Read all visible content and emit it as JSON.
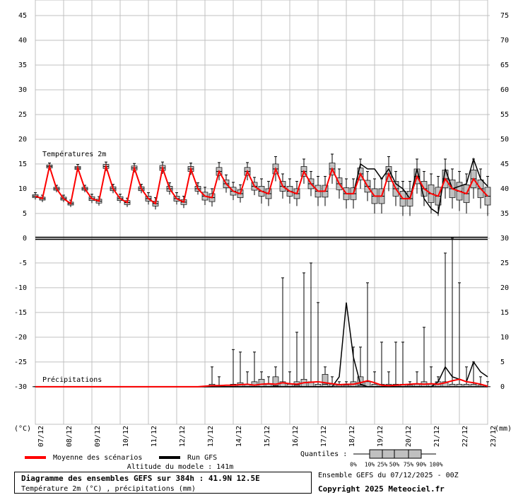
{
  "chart_data": {
    "type": "boxplot",
    "categories": [
      "07/12",
      "08/12",
      "09/12",
      "10/12",
      "11/12",
      "12/12",
      "13/12",
      "14/12",
      "15/12",
      "16/12",
      "17/12",
      "18/12",
      "19/12",
      "20/12",
      "21/12",
      "22/12",
      "23/12"
    ],
    "ylim": [
      -37.6,
      45
    ],
    "yticks": [
      -30,
      -25,
      -20,
      -15,
      -10,
      -5,
      0,
      5,
      10,
      15,
      20,
      25,
      30,
      35,
      40,
      45
    ],
    "y2lim": [
      -7.6,
      75
    ],
    "y2ticks": [
      0,
      5,
      10,
      15,
      20,
      25,
      30,
      35,
      40,
      45,
      50,
      55,
      60,
      65,
      70,
      75
    ],
    "ylabel": "(°C)",
    "y2label": "(mm)",
    "grid": true,
    "box_color": "#c0c0c0",
    "legend": [
      {
        "name": "Moyenne des scénarios",
        "color": "#ff0000"
      },
      {
        "name": "Run GFS",
        "color": "#000000"
      }
    ],
    "temperature": {
      "label": "Températures 2m",
      "mean": [
        8.5,
        8,
        14.5,
        10,
        8,
        7,
        14.2,
        10,
        8,
        7.5,
        14.5,
        10,
        8,
        7.2,
        14.2,
        10,
        8,
        7,
        14.2,
        10,
        8,
        7.3,
        14,
        10,
        8.5,
        8.2,
        13.5,
        11,
        9.5,
        9,
        13.5,
        10.5,
        9.5,
        9,
        14,
        10.5,
        9.5,
        9,
        13.5,
        11,
        9.5,
        9.5,
        14,
        11,
        9,
        9,
        13,
        10.5,
        8.5,
        8.5,
        13,
        10,
        8,
        8,
        12.5,
        10,
        9,
        8.5,
        12,
        10,
        9.5,
        9,
        12,
        10,
        8.5
      ],
      "gfs": [
        8.5,
        8,
        14.5,
        10,
        8,
        7,
        14.2,
        10,
        8,
        7.5,
        14.5,
        10,
        8,
        7.2,
        14.2,
        10,
        8,
        7,
        14.2,
        10,
        8,
        7.3,
        14,
        10,
        8.5,
        8.2,
        13.5,
        11,
        9.5,
        9,
        13.5,
        10.5,
        9.5,
        9,
        14,
        10.5,
        9.5,
        9,
        13.5,
        11,
        9.5,
        9.5,
        14,
        11,
        9,
        9,
        15,
        14,
        14,
        12,
        14,
        11,
        10,
        8,
        14,
        8,
        6,
        5,
        14,
        10,
        10.5,
        11,
        16,
        12,
        10.5
      ],
      "boxes": [
        [
          7.8,
          8.2,
          8.5,
          8.8,
          9.2
        ],
        [
          7.3,
          7.7,
          8,
          8.3,
          8.7
        ],
        [
          13.8,
          14.2,
          14.5,
          14.8,
          15.2
        ],
        [
          9.3,
          9.7,
          10,
          10.3,
          10.7
        ],
        [
          7.3,
          7.7,
          8,
          8.3,
          8.7
        ],
        [
          6.3,
          6.7,
          7,
          7.3,
          7.7
        ],
        [
          13.5,
          13.9,
          14.2,
          14.5,
          14.9
        ],
        [
          9.3,
          9.7,
          10,
          10.3,
          10.7
        ],
        [
          7.1,
          7.6,
          8,
          8.4,
          8.9
        ],
        [
          6.6,
          7.1,
          7.5,
          7.9,
          8.4
        ],
        [
          13.6,
          14.1,
          14.5,
          14.9,
          15.4
        ],
        [
          9.1,
          9.6,
          10,
          10.4,
          10.9
        ],
        [
          7.1,
          7.6,
          8,
          8.4,
          8.9
        ],
        [
          6.3,
          6.8,
          7.2,
          7.6,
          8.1
        ],
        [
          13.3,
          13.8,
          14.2,
          14.6,
          15.1
        ],
        [
          9.1,
          9.6,
          10,
          10.4,
          10.9
        ],
        [
          6.8,
          7.5,
          8,
          8.5,
          9.2
        ],
        [
          5.8,
          6.5,
          7,
          7.5,
          8.2
        ],
        [
          13,
          13.7,
          14.2,
          14.7,
          15.4
        ],
        [
          8.8,
          9.5,
          10,
          10.5,
          11.2
        ],
        [
          6.8,
          7.5,
          8,
          8.5,
          9.2
        ],
        [
          6.1,
          6.8,
          7.3,
          7.8,
          8.5
        ],
        [
          12.8,
          13.5,
          14,
          14.5,
          15.2
        ],
        [
          8.8,
          9.5,
          10,
          10.5,
          11.2
        ],
        [
          6.7,
          7.7,
          8.5,
          9.3,
          10.3
        ],
        [
          6.4,
          7.4,
          8.2,
          9,
          10
        ],
        [
          11.7,
          12.7,
          13.5,
          14.3,
          15.3
        ],
        [
          9.2,
          10.2,
          11,
          11.8,
          12.8
        ],
        [
          7.7,
          8.7,
          9.5,
          10.3,
          11.3
        ],
        [
          7.2,
          8.2,
          9,
          9.8,
          10.8
        ],
        [
          11.7,
          12.7,
          13.5,
          14.3,
          15.3
        ],
        [
          8.7,
          9.7,
          10.5,
          11.3,
          12.3
        ],
        [
          7,
          8.5,
          9.5,
          10.5,
          12
        ],
        [
          6.5,
          8,
          9,
          10,
          11.5
        ],
        [
          11.5,
          13,
          14,
          15,
          16.5
        ],
        [
          8,
          9.5,
          10.5,
          11.5,
          13
        ],
        [
          7,
          8.5,
          9.5,
          10.5,
          12
        ],
        [
          6.5,
          8,
          9,
          10,
          11.5
        ],
        [
          11,
          12.5,
          13.5,
          14.5,
          16
        ],
        [
          8.5,
          10,
          11,
          12,
          13.5
        ],
        [
          6.5,
          8.3,
          9.5,
          10.7,
          12.5
        ],
        [
          6.5,
          8.3,
          9.5,
          10.7,
          12.5
        ],
        [
          11,
          12.8,
          14,
          15.2,
          17
        ],
        [
          8,
          9.8,
          11,
          12.2,
          14
        ],
        [
          6,
          7.8,
          9,
          10.2,
          12
        ],
        [
          6,
          7.8,
          9,
          10.2,
          12
        ],
        [
          10,
          11.8,
          13,
          14.2,
          16
        ],
        [
          7.5,
          9.3,
          10.5,
          11.7,
          13.5
        ],
        [
          5,
          7,
          8.5,
          10,
          12
        ],
        [
          5,
          7,
          8.5,
          10,
          12
        ],
        [
          9.5,
          11.5,
          13,
          14.5,
          16.5
        ],
        [
          6.5,
          8.5,
          10,
          11.5,
          13.5
        ],
        [
          4.5,
          6.5,
          8,
          9.5,
          11.5
        ],
        [
          4.5,
          6.5,
          8,
          9.5,
          11.5
        ],
        [
          9,
          11,
          12.5,
          14,
          16
        ],
        [
          6.5,
          8.5,
          10,
          11.5,
          13.5
        ],
        [
          5,
          7.2,
          9,
          10.8,
          13
        ],
        [
          4.5,
          6.7,
          8.5,
          10.3,
          12.5
        ],
        [
          8,
          10.2,
          12,
          13.8,
          16
        ],
        [
          6,
          8.2,
          10,
          11.8,
          14
        ],
        [
          5.5,
          7.7,
          9.5,
          11.3,
          13.5
        ],
        [
          5,
          7.2,
          9,
          10.8,
          13
        ],
        [
          8,
          10.2,
          12,
          13.8,
          16
        ],
        [
          6,
          8.2,
          10,
          11.8,
          14
        ],
        [
          4.5,
          6.7,
          8.5,
          10.3,
          12.5
        ]
      ]
    },
    "precipitation": {
      "label": "Précipitations",
      "axis": "y2",
      "mean": [
        0,
        0,
        0,
        0,
        0,
        0,
        0,
        0,
        0,
        0,
        0,
        0,
        0,
        0,
        0,
        0,
        0,
        0,
        0,
        0,
        0,
        0,
        0,
        0,
        0.1,
        0.2,
        0.2,
        0.3,
        0.3,
        0.4,
        0.5,
        0.3,
        0.5,
        0.6,
        0.5,
        0.8,
        0.6,
        0.5,
        0.8,
        0.9,
        1,
        0.8,
        0.6,
        0.4,
        0.5,
        0.5,
        0.8,
        1.2,
        0.8,
        0.3,
        0.2,
        0.3,
        0.4,
        0.5,
        0.6,
        0.5,
        0.6,
        0.5,
        0.8,
        1.2,
        1.5,
        1,
        0.8,
        0.5,
        0.1
      ],
      "gfs": [
        0,
        0,
        0,
        0,
        0,
        0,
        0,
        0,
        0,
        0,
        0,
        0,
        0,
        0,
        0,
        0,
        0,
        0,
        0,
        0,
        0,
        0,
        0,
        0,
        0,
        0,
        0,
        0,
        0,
        0,
        0,
        0,
        0,
        0,
        0,
        0,
        0,
        0,
        0,
        0,
        0,
        0,
        0,
        2,
        17,
        6,
        0.5,
        0,
        0,
        0,
        0,
        0,
        0,
        0,
        0,
        0,
        0,
        1,
        4,
        2,
        1.5,
        1,
        5,
        3,
        2
      ],
      "boxes": [
        [
          0,
          0,
          0,
          0,
          0
        ],
        [
          0,
          0,
          0,
          0,
          0
        ],
        [
          0,
          0,
          0,
          0,
          0
        ],
        [
          0,
          0,
          0,
          0,
          0
        ],
        [
          0,
          0,
          0,
          0,
          0
        ],
        [
          0,
          0,
          0,
          0,
          0
        ],
        [
          0,
          0,
          0,
          0,
          0
        ],
        [
          0,
          0,
          0,
          0,
          0
        ],
        [
          0,
          0,
          0,
          0,
          0
        ],
        [
          0,
          0,
          0,
          0,
          0
        ],
        [
          0,
          0,
          0,
          0,
          0
        ],
        [
          0,
          0,
          0,
          0,
          0
        ],
        [
          0,
          0,
          0,
          0,
          0
        ],
        [
          0,
          0,
          0,
          0,
          0
        ],
        [
          0,
          0,
          0,
          0,
          0
        ],
        [
          0,
          0,
          0,
          0,
          0
        ],
        [
          0,
          0,
          0,
          0,
          0
        ],
        [
          0,
          0,
          0,
          0,
          0
        ],
        [
          0,
          0,
          0,
          0,
          0
        ],
        [
          0,
          0,
          0,
          0,
          0
        ],
        [
          0,
          0,
          0,
          0,
          0
        ],
        [
          0,
          0,
          0,
          0,
          0
        ],
        [
          0,
          0,
          0,
          0,
          0
        ],
        [
          0,
          0,
          0,
          0,
          0
        ],
        [
          0,
          0,
          0,
          0,
          0
        ],
        [
          0,
          0,
          0,
          0.5,
          4
        ],
        [
          0,
          0,
          0,
          0.3,
          2
        ],
        [
          0,
          0,
          0,
          0,
          0
        ],
        [
          0,
          0,
          0,
          0.5,
          7.5
        ],
        [
          0,
          0,
          0,
          0.8,
          7
        ],
        [
          0,
          0,
          0,
          0.5,
          3
        ],
        [
          0,
          0,
          0,
          1,
          7
        ],
        [
          0,
          0,
          0,
          1.5,
          3
        ],
        [
          0,
          0,
          0,
          0.5,
          2
        ],
        [
          0,
          0,
          0.2,
          2,
          4
        ],
        [
          0,
          0,
          0,
          1,
          22
        ],
        [
          0,
          0,
          0,
          0.5,
          3
        ],
        [
          0,
          0,
          0.3,
          1,
          11
        ],
        [
          0,
          0,
          0,
          1.5,
          23
        ],
        [
          0,
          0,
          0,
          1,
          25
        ],
        [
          0,
          0,
          0,
          0.5,
          17
        ],
        [
          0,
          0,
          0.5,
          2.5,
          4
        ],
        [
          0,
          0,
          0,
          0.5,
          2
        ],
        [
          0,
          0,
          0,
          0.3,
          1
        ],
        [
          0,
          0,
          0,
          0.3,
          1
        ],
        [
          0,
          0,
          0,
          1,
          8
        ],
        [
          0,
          0,
          0.3,
          2,
          8
        ],
        [
          0,
          0,
          0,
          1,
          21
        ],
        [
          0,
          0,
          0,
          0.5,
          3
        ],
        [
          0,
          0,
          0,
          0.5,
          9
        ],
        [
          0,
          0,
          0,
          0.5,
          3
        ],
        [
          0,
          0,
          0,
          0.5,
          9
        ],
        [
          0,
          0,
          0,
          0.5,
          9
        ],
        [
          0,
          0,
          0,
          0.3,
          1
        ],
        [
          0,
          0,
          0,
          0.5,
          3
        ],
        [
          0,
          0,
          0,
          1,
          12
        ],
        [
          0,
          0,
          0,
          0.5,
          4
        ],
        [
          0,
          0,
          0,
          1,
          2
        ],
        [
          0,
          0,
          0,
          1,
          27
        ],
        [
          0,
          0,
          0,
          0.5,
          30
        ],
        [
          0,
          0,
          0,
          0.5,
          21
        ],
        [
          0,
          0,
          0,
          0.5,
          4
        ],
        [
          0,
          0,
          0,
          0.5,
          5
        ],
        [
          0,
          0,
          0,
          0.3,
          2
        ],
        [
          0,
          0,
          0,
          0,
          1
        ]
      ]
    },
    "quantiles": {
      "label": "Quantiles :",
      "levels": [
        "0%",
        "10%",
        "25%",
        "50%",
        "75%",
        "90%",
        "100%"
      ]
    }
  },
  "footer": {
    "altitude": "Altitude du modele : 141m",
    "title": "Diagramme des ensembles GEFS sur 384h : 41.9N 12.5E",
    "subtitle": "Température 2m (°C) , précipitations (mm)",
    "run": "Ensemble GEFS du 07/12/2025 - 00Z",
    "copyright": "Copyright 2025 Meteociel.fr"
  }
}
